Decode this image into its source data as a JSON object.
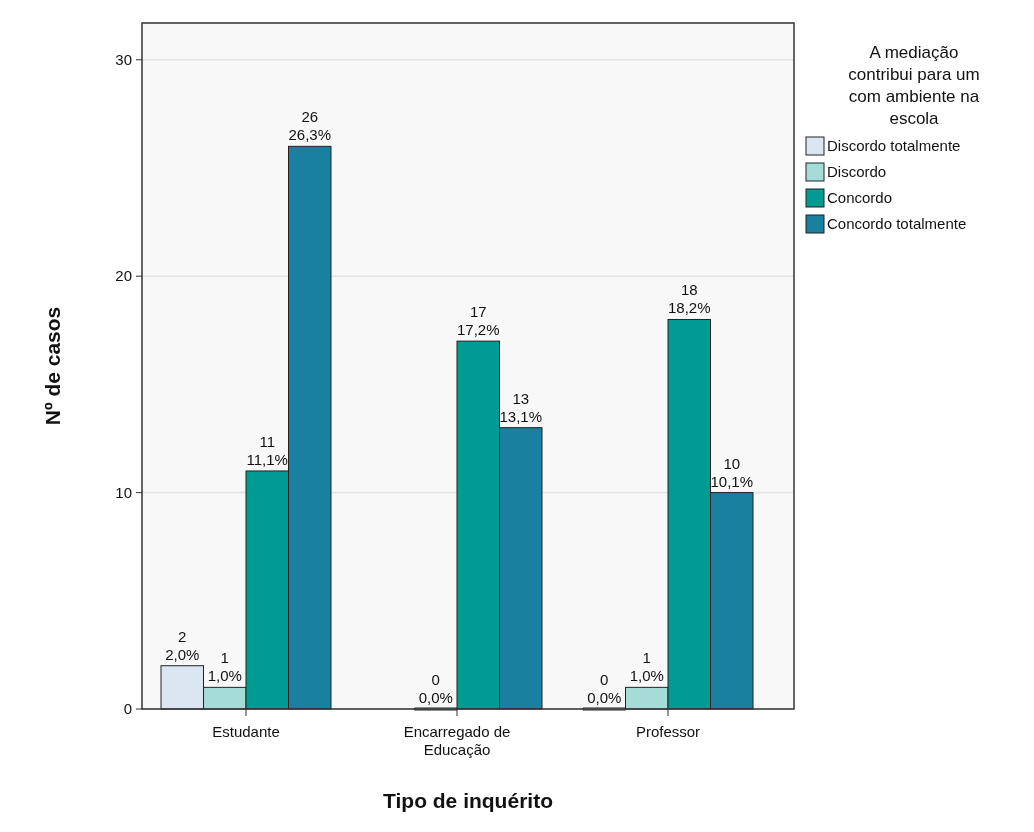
{
  "chart_data": {
    "type": "bar",
    "xlabel": "Tipo de inquérito",
    "ylabel": "Nº de casos",
    "legend_title": "A mediação contribui para um com ambiente na escola",
    "categories": [
      "Estudante",
      "Encarregado de Educação",
      "Professor"
    ],
    "series": [
      {
        "name": "Discordo totalmente",
        "color": "#dce6f2",
        "values": [
          2,
          null,
          0
        ],
        "value_labels": [
          "2\n2,0%",
          null,
          "0\n0,0%"
        ]
      },
      {
        "name": "Discordo",
        "color": "#a6dcd8",
        "values": [
          1,
          0,
          1
        ],
        "value_labels": [
          "1\n1,0%",
          "0\n0,0%",
          "1\n1,0%"
        ]
      },
      {
        "name": "Concordo",
        "color": "#009c94",
        "values": [
          11,
          17,
          18
        ],
        "value_labels": [
          "11\n11,1%",
          "17\n17,2%",
          "18\n18,2%"
        ]
      },
      {
        "name": "Concordo totalmente",
        "color": "#19809f",
        "values": [
          26,
          13,
          10
        ],
        "value_labels": [
          "26\n26,3%",
          "13\n13,1%",
          "10\n10,1%"
        ]
      }
    ],
    "ylim": [
      0,
      31.7
    ],
    "yticks": [
      0,
      10,
      20,
      30
    ],
    "grid": "y",
    "legend": "right"
  }
}
